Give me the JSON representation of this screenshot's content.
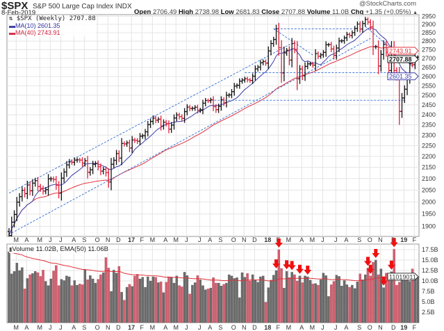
{
  "header": {
    "symbol": "$SPX",
    "name": "S&P 500 Large Cap Index",
    "exchange": "INDX",
    "date": "8-Feb-2019",
    "brand": "@StockCharts.com",
    "open_label": "Open",
    "open": "2706.49",
    "high_label": "High",
    "high": "2738.98",
    "low_label": "Low",
    "low": "2681.83",
    "close_label": "Close",
    "close": "2707.88",
    "volume_label": "Volume",
    "volume": "11.0B",
    "chg_label": "Chg",
    "chg": "+1.35 (+0.05%)",
    "chg_arrow": "▲"
  },
  "legend": {
    "price": "$SPX (Weekly) 2707.88",
    "ma10": "MA(10) 2601.35",
    "ma40": "MA(40) 2743.91",
    "volume": "Volume 11.02B, EMA(50) 11.06B"
  },
  "colors": {
    "up": "#111111",
    "down": "#e0203a",
    "ma10": "#3a3aa8",
    "ma40": "#e0303a",
    "trend": "#2b6bd6",
    "vol_up": "#6b6b6b",
    "vol_down": "#d06070",
    "arrow": "#ee1111"
  },
  "chart_data": {
    "type": "ohlc",
    "title": "$SPX S&P 500 Large Cap Index INDX (Weekly)",
    "scale": "log",
    "ylim": [
      1851,
      2967
    ],
    "price_ticks": [
      1900,
      1950,
      2000,
      2050,
      2100,
      2150,
      2200,
      2250,
      2300,
      2350,
      2400,
      2450,
      2500,
      2550,
      2600,
      2650,
      2700,
      2750,
      2800,
      2850,
      2900,
      2950
    ],
    "first_open": 1880,
    "closes": [
      1864,
      1917,
      1948,
      1999,
      2022,
      2049,
      2035,
      2072,
      2047,
      2080,
      2091,
      2065,
      2057,
      2046,
      2052,
      2099,
      2099,
      2096,
      2071,
      2037,
      2102,
      2129,
      2161,
      2175,
      2173,
      2183,
      2184,
      2183,
      2169,
      2180,
      2128,
      2139,
      2164,
      2168,
      2153,
      2133,
      2141,
      2126,
      2085,
      2164,
      2182,
      2213,
      2192,
      2260,
      2258,
      2263,
      2239,
      2277,
      2275,
      2271,
      2295,
      2297,
      2316,
      2351,
      2367,
      2383,
      2373,
      2378,
      2344,
      2363,
      2356,
      2329,
      2349,
      2384,
      2399,
      2391,
      2382,
      2416,
      2439,
      2432,
      2433,
      2438,
      2423,
      2425,
      2459,
      2473,
      2472,
      2477,
      2441,
      2426,
      2443,
      2477,
      2461,
      2500,
      2502,
      2519,
      2549,
      2553,
      2575,
      2581,
      2588,
      2582,
      2579,
      2602,
      2642,
      2652,
      2676,
      2683,
      2674,
      2743,
      2786,
      2810,
      2873,
      2762,
      2620,
      2732,
      2747,
      2691,
      2786,
      2752,
      2588,
      2641,
      2604,
      2656,
      2670,
      2670,
      2663,
      2728,
      2713,
      2721,
      2735,
      2779,
      2780,
      2755,
      2718,
      2760,
      2801,
      2802,
      2819,
      2840,
      2833,
      2850,
      2875,
      2902,
      2872,
      2905,
      2930,
      2914,
      2885,
      2767,
      2768,
      2658,
      2723,
      2781,
      2736,
      2633,
      2760,
      2633,
      2600,
      2417,
      2486,
      2532,
      2596,
      2671,
      2665,
      2707,
      2708
    ],
    "volume_billions": [
      17,
      11.7,
      12.3,
      14.3,
      12.5,
      13.2,
      8.1,
      10.6,
      11.5,
      11.8,
      12.3,
      12.0,
      11.1,
      12.6,
      9.9,
      8.9,
      10.5,
      12.4,
      13.7,
      8.9,
      10.4,
      10.1,
      11.2,
      11.0,
      8.9,
      10.1,
      9.0,
      9.3,
      9.1,
      12.8,
      10.3,
      11.3,
      10.5,
      9.5,
      10.4,
      11.5,
      12.0,
      15.6,
      13.1,
      7.5,
      12.6,
      11.9,
      13.5,
      7.3,
      5.4,
      8.5,
      9.2,
      8.7,
      11.2,
      11.6,
      10.5,
      10.9,
      8.5,
      11.0,
      10.0,
      11.0,
      10.9,
      9.6,
      9.8,
      7.2,
      9.7,
      11.0,
      10.8,
      9.5,
      11.2,
      8.9,
      8.6,
      12.1,
      11.3,
      6.9,
      9.0,
      9.6,
      11.3,
      10.3,
      8.9,
      7.9,
      8.1,
      8.3,
      10.8,
      9.5,
      9.5,
      8.8,
      9.2,
      9.5,
      11.5,
      11.2,
      10.6,
      10.8,
      6.0,
      12.0,
      10.9,
      11.8,
      10.0,
      11.5,
      10.3,
      9.7,
      11.0,
      11.2,
      4.9,
      8.4,
      10.2,
      11.4,
      12.5,
      17.5,
      13.0,
      8.3,
      12.3,
      10.8,
      12.1,
      11.5,
      10.0,
      11.2,
      9.6,
      11.2,
      11.0,
      10.2,
      9.3,
      9.4,
      9.0,
      10.3,
      11.9,
      11.3,
      6.3,
      9.1,
      9.9,
      11.4,
      11.1,
      8.8,
      10.1,
      9.1,
      8.5,
      9.0,
      8.2,
      9.8,
      11.7,
      10.3,
      11.5,
      13.1,
      11.2,
      14.5,
      15.0,
      11.5,
      12.9,
      8.4,
      11.9,
      11.4,
      12.2,
      17.6,
      9.0,
      9.7,
      11.7,
      11.8,
      11.8,
      9.9,
      12.9,
      11.0,
      11.02
    ],
    "volume_ticks": [
      "2.5B",
      "5.0B",
      "7.5B",
      "10.0B",
      "12.5B",
      "15.0B",
      "17.5B"
    ],
    "volume_tick_values": [
      2.5,
      5,
      7.5,
      10,
      12.5,
      15,
      17.5
    ],
    "volume_ylim": [
      0,
      18.7
    ],
    "ma_periods": [
      10,
      40
    ],
    "ema_period": 50,
    "last_values": {
      "close": "2707.88",
      "ma10": "2601.35",
      "ma40": "2743.91",
      "volume": "11019011"
    },
    "months": [
      {
        "label": "M",
        "week": 3
      },
      {
        "label": "A",
        "week": 7
      },
      {
        "label": "M",
        "week": 12
      },
      {
        "label": "J",
        "week": 16
      },
      {
        "label": "J",
        "week": 20
      },
      {
        "label": "A",
        "week": 25
      },
      {
        "label": "S",
        "week": 29
      },
      {
        "label": "O",
        "week": 34
      },
      {
        "label": "N",
        "week": 38
      },
      {
        "label": "D",
        "week": 42
      },
      {
        "label": "17",
        "week": 47,
        "bold": true
      },
      {
        "label": "F",
        "week": 51
      },
      {
        "label": "M",
        "week": 55
      },
      {
        "label": "A",
        "week": 60
      },
      {
        "label": "M",
        "week": 64
      },
      {
        "label": "J",
        "week": 68
      },
      {
        "label": "J",
        "week": 73
      },
      {
        "label": "A",
        "week": 77
      },
      {
        "label": "S",
        "week": 81
      },
      {
        "label": "O",
        "week": 86
      },
      {
        "label": "N",
        "week": 90
      },
      {
        "label": "D",
        "week": 94
      },
      {
        "label": "18",
        "week": 99,
        "bold": true
      },
      {
        "label": "F",
        "week": 103
      },
      {
        "label": "M",
        "week": 107
      },
      {
        "label": "A",
        "week": 112
      },
      {
        "label": "M",
        "week": 116
      },
      {
        "label": "J",
        "week": 120
      },
      {
        "label": "J",
        "week": 125
      },
      {
        "label": "A",
        "week": 129
      },
      {
        "label": "S",
        "week": 134
      },
      {
        "label": "O",
        "week": 138
      },
      {
        "label": "N",
        "week": 142
      },
      {
        "label": "D",
        "week": 147
      },
      {
        "label": "19",
        "week": 151,
        "bold": true
      },
      {
        "label": "F",
        "week": 155
      }
    ],
    "trendlines": [
      {
        "from": [
          0,
          2037
        ],
        "to": [
          108,
          2787
        ]
      },
      {
        "from": [
          1,
          1874
        ],
        "to": [
          138,
          2816
        ]
      },
      {
        "from": [
          101,
          2873
        ],
        "to": [
          132,
          2873
        ]
      },
      {
        "from": [
          101,
          2873
        ],
        "to": [
          116,
          2720
        ]
      },
      {
        "from": [
          90,
          2621
        ],
        "to": [
          148,
          2621
        ]
      },
      {
        "from": [
          77,
          2474
        ],
        "to": [
          151,
          2474
        ]
      },
      {
        "from": [
          136,
          2887
        ],
        "to": [
          154,
          2657
        ]
      }
    ],
    "volume_arrows": [
      102,
      103,
      106,
      108,
      111,
      114,
      137,
      138,
      140,
      143,
      146,
      147
    ]
  }
}
